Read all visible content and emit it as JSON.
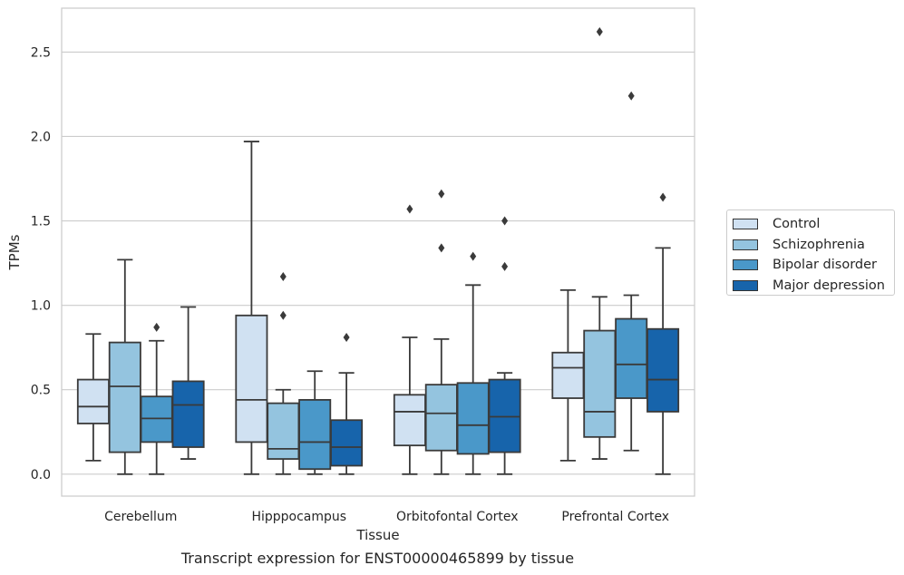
{
  "chart_data": {
    "type": "box",
    "xlabel": "Tissue",
    "ylabel": "TPMs",
    "caption": "Transcript expression for ENST00000465899 by tissue",
    "ylim": [
      -0.13,
      2.76
    ],
    "yticks": [
      "0.0",
      "0.5",
      "1.0",
      "1.5",
      "2.0",
      "2.5"
    ],
    "grid": true,
    "legend_position": "right-outside",
    "categories": [
      "Cerebellum",
      "Hipppocampus",
      "Orbitofontal Cortex",
      "Prefrontal Cortex"
    ],
    "series": [
      {
        "name": "Control",
        "color": "#d0e1f2",
        "boxes": [
          {
            "whislo": 0.08,
            "q1": 0.3,
            "med": 0.4,
            "q3": 0.56,
            "whishi": 0.83,
            "fliers": []
          },
          {
            "whislo": 0.0,
            "q1": 0.19,
            "med": 0.44,
            "q3": 0.94,
            "whishi": 1.97,
            "fliers": []
          },
          {
            "whislo": 0.0,
            "q1": 0.17,
            "med": 0.37,
            "q3": 0.47,
            "whishi": 0.81,
            "fliers": [
              1.57
            ]
          },
          {
            "whislo": 0.08,
            "q1": 0.45,
            "med": 0.63,
            "q3": 0.72,
            "whishi": 1.09,
            "fliers": []
          }
        ]
      },
      {
        "name": "Schizophrenia",
        "color": "#94c4df",
        "boxes": [
          {
            "whislo": 0.0,
            "q1": 0.13,
            "med": 0.52,
            "q3": 0.78,
            "whishi": 1.27,
            "fliers": []
          },
          {
            "whislo": 0.0,
            "q1": 0.09,
            "med": 0.15,
            "q3": 0.42,
            "whishi": 0.5,
            "fliers": [
              0.94,
              1.17
            ]
          },
          {
            "whislo": 0.0,
            "q1": 0.14,
            "med": 0.36,
            "q3": 0.53,
            "whishi": 0.8,
            "fliers": [
              1.34,
              1.66
            ]
          },
          {
            "whislo": 0.09,
            "q1": 0.22,
            "med": 0.37,
            "q3": 0.85,
            "whishi": 1.05,
            "fliers": [
              2.62
            ]
          }
        ]
      },
      {
        "name": "Bipolar disorder",
        "color": "#4a98c9",
        "boxes": [
          {
            "whislo": 0.0,
            "q1": 0.19,
            "med": 0.33,
            "q3": 0.46,
            "whishi": 0.79,
            "fliers": [
              0.87
            ]
          },
          {
            "whislo": 0.0,
            "q1": 0.03,
            "med": 0.19,
            "q3": 0.44,
            "whishi": 0.61,
            "fliers": []
          },
          {
            "whislo": 0.0,
            "q1": 0.12,
            "med": 0.29,
            "q3": 0.54,
            "whishi": 1.12,
            "fliers": [
              1.29
            ]
          },
          {
            "whislo": 0.14,
            "q1": 0.45,
            "med": 0.65,
            "q3": 0.92,
            "whishi": 1.06,
            "fliers": [
              2.24
            ]
          }
        ]
      },
      {
        "name": "Major depression",
        "color": "#1764ab",
        "boxes": [
          {
            "whislo": 0.09,
            "q1": 0.16,
            "med": 0.41,
            "q3": 0.55,
            "whishi": 0.99,
            "fliers": []
          },
          {
            "whislo": 0.0,
            "q1": 0.05,
            "med": 0.16,
            "q3": 0.32,
            "whishi": 0.6,
            "fliers": [
              0.81
            ]
          },
          {
            "whislo": 0.0,
            "q1": 0.13,
            "med": 0.34,
            "q3": 0.56,
            "whishi": 0.6,
            "fliers": [
              1.23,
              1.5
            ]
          },
          {
            "whislo": 0.0,
            "q1": 0.37,
            "med": 0.56,
            "q3": 0.86,
            "whishi": 1.34,
            "fliers": [
              1.64
            ]
          }
        ]
      }
    ]
  }
}
